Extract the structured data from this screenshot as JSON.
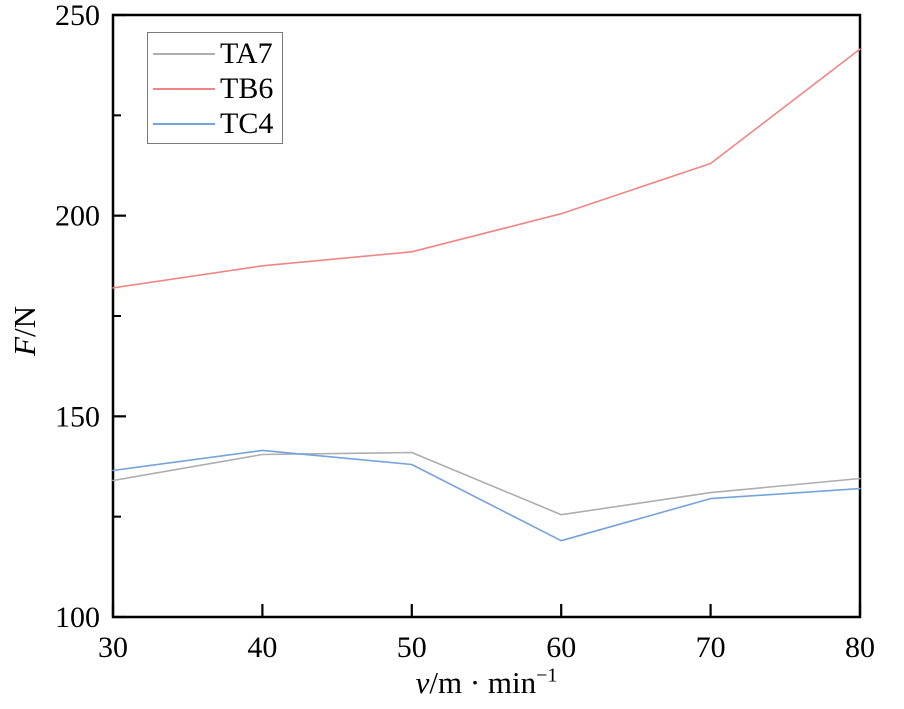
{
  "chart_data": {
    "type": "line",
    "title": "",
    "xlabel": {
      "italic": "v",
      "rest": "/m · min",
      "sup": "−1"
    },
    "ylabel": {
      "italic": "F",
      "rest": "/N"
    },
    "x": [
      30,
      40,
      50,
      60,
      70,
      80
    ],
    "series": [
      {
        "name": "TA7",
        "color": "#aeaeae",
        "values": [
          134,
          140.5,
          141,
          125.5,
          131,
          134.5
        ]
      },
      {
        "name": "TB6",
        "color": "#f08683",
        "values": [
          182,
          187.5,
          191,
          200.5,
          213,
          241.5
        ]
      },
      {
        "name": "TC4",
        "color": "#76a3da",
        "values": [
          136.5,
          141.5,
          138,
          119,
          129.5,
          132
        ]
      }
    ],
    "xlim": [
      30,
      80
    ],
    "ylim": [
      100,
      250
    ],
    "x_ticks": [
      30,
      40,
      50,
      60,
      70,
      80
    ],
    "y_ticks": [
      100,
      150,
      200,
      250
    ],
    "y_minor_ticks": [
      125,
      175,
      225
    ],
    "grid": false,
    "legend_position": "top-left",
    "frame_color": "#000000",
    "background_color": "#ffffff"
  }
}
